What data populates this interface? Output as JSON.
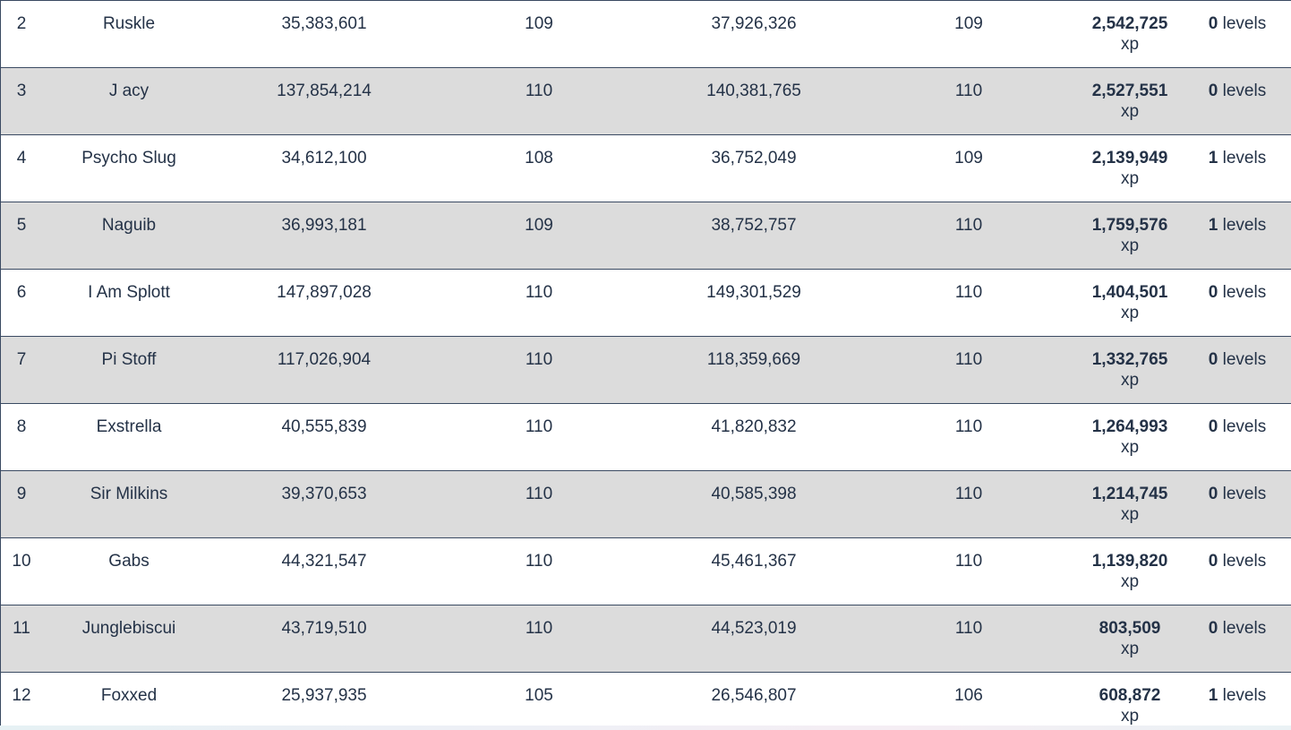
{
  "table": {
    "rows": [
      {
        "rank": "2",
        "name": "Ruskle",
        "start_xp": "35,383,601",
        "start_level": "109",
        "end_xp": "37,926,326",
        "end_level": "109",
        "gain_xp": "2,542,725",
        "gain_unit": "xp",
        "levels_gained": "0",
        "levels_unit": "levels"
      },
      {
        "rank": "3",
        "name": "J acy",
        "start_xp": "137,854,214",
        "start_level": "110",
        "end_xp": "140,381,765",
        "end_level": "110",
        "gain_xp": "2,527,551",
        "gain_unit": "xp",
        "levels_gained": "0",
        "levels_unit": "levels"
      },
      {
        "rank": "4",
        "name": "Psycho Slug",
        "start_xp": "34,612,100",
        "start_level": "108",
        "end_xp": "36,752,049",
        "end_level": "109",
        "gain_xp": "2,139,949",
        "gain_unit": "xp",
        "levels_gained": "1",
        "levels_unit": "levels"
      },
      {
        "rank": "5",
        "name": "Naguib",
        "start_xp": "36,993,181",
        "start_level": "109",
        "end_xp": "38,752,757",
        "end_level": "110",
        "gain_xp": "1,759,576",
        "gain_unit": "xp",
        "levels_gained": "1",
        "levels_unit": "levels"
      },
      {
        "rank": "6",
        "name": "I Am Splott",
        "start_xp": "147,897,028",
        "start_level": "110",
        "end_xp": "149,301,529",
        "end_level": "110",
        "gain_xp": "1,404,501",
        "gain_unit": "xp",
        "levels_gained": "0",
        "levels_unit": "levels"
      },
      {
        "rank": "7",
        "name": "Pi Stoff",
        "start_xp": "117,026,904",
        "start_level": "110",
        "end_xp": "118,359,669",
        "end_level": "110",
        "gain_xp": "1,332,765",
        "gain_unit": "xp",
        "levels_gained": "0",
        "levels_unit": "levels"
      },
      {
        "rank": "8",
        "name": "Exstrella",
        "start_xp": "40,555,839",
        "start_level": "110",
        "end_xp": "41,820,832",
        "end_level": "110",
        "gain_xp": "1,264,993",
        "gain_unit": "xp",
        "levels_gained": "0",
        "levels_unit": "levels"
      },
      {
        "rank": "9",
        "name": "Sir Milkins",
        "start_xp": "39,370,653",
        "start_level": "110",
        "end_xp": "40,585,398",
        "end_level": "110",
        "gain_xp": "1,214,745",
        "gain_unit": "xp",
        "levels_gained": "0",
        "levels_unit": "levels"
      },
      {
        "rank": "10",
        "name": "Gabs",
        "start_xp": "44,321,547",
        "start_level": "110",
        "end_xp": "45,461,367",
        "end_level": "110",
        "gain_xp": "1,139,820",
        "gain_unit": "xp",
        "levels_gained": "0",
        "levels_unit": "levels"
      },
      {
        "rank": "11",
        "name": "Junglebiscui",
        "start_xp": "43,719,510",
        "start_level": "110",
        "end_xp": "44,523,019",
        "end_level": "110",
        "gain_xp": "803,509",
        "gain_unit": "xp",
        "levels_gained": "0",
        "levels_unit": "levels"
      },
      {
        "rank": "12",
        "name": "Foxxed",
        "start_xp": "25,937,935",
        "start_level": "105",
        "end_xp": "26,546,807",
        "end_level": "106",
        "gain_xp": "608,872",
        "gain_unit": "xp",
        "levels_gained": "1",
        "levels_unit": "levels"
      }
    ]
  },
  "colors": {
    "text": "#243247",
    "border": "#3a4a62",
    "row_alt_bg": "#dcdcdc",
    "row_bg": "#ffffff"
  }
}
